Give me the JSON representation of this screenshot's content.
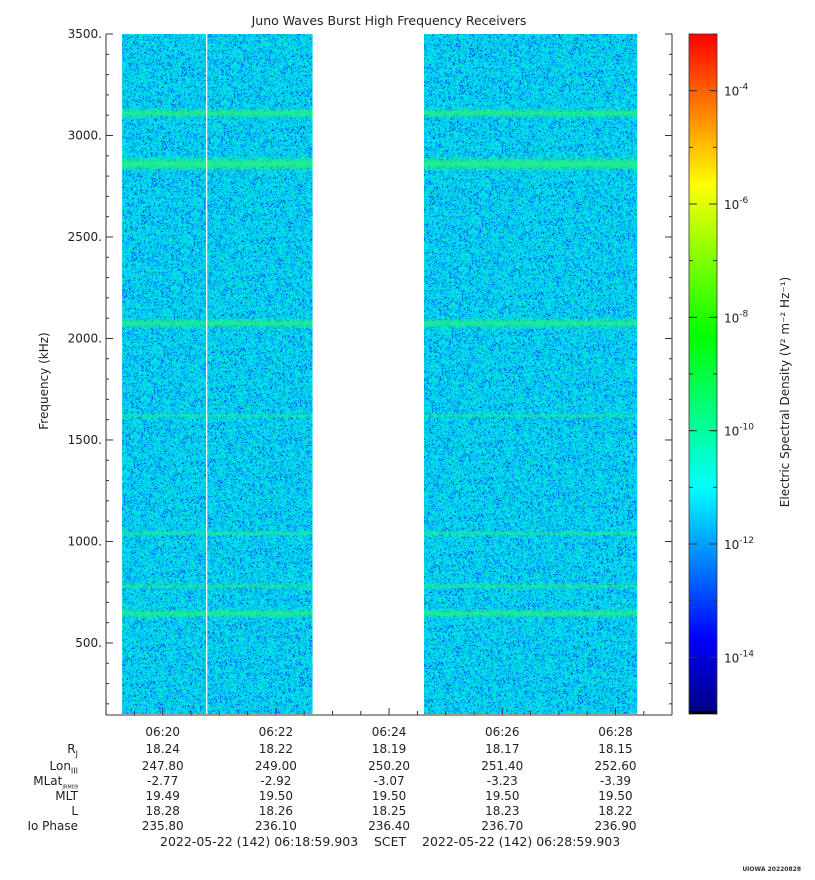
{
  "chart_data": {
    "type": "heatmap",
    "title": "Juno Waves Burst High Frequency Receivers",
    "ylabel": "Frequency (kHz)",
    "ylim": [
      150,
      3500
    ],
    "yticks": [
      {
        "value": 500,
        "label": "500."
      },
      {
        "value": 1000,
        "label": "1000."
      },
      {
        "value": 1500,
        "label": "1500."
      },
      {
        "value": 2000,
        "label": "2000."
      },
      {
        "value": 2500,
        "label": "2500."
      },
      {
        "value": 3000,
        "label": "3000."
      },
      {
        "value": 3500,
        "label": "3500."
      }
    ],
    "xlim": [
      "06:18:59.903",
      "06:28:59.903"
    ],
    "xticks": [
      "06:20",
      "06:22",
      "06:24",
      "06:26",
      "06:28"
    ],
    "data_segments": [
      {
        "start": "06:19:17",
        "end": "06:22:39"
      },
      {
        "start": "06:24:37",
        "end": "06:28:23"
      }
    ],
    "data_gaps": [
      {
        "start": "06:20:46",
        "end": "06:20:47"
      },
      {
        "start": "06:22:39",
        "end": "06:24:37"
      }
    ],
    "emission_bands_khz": [
      3110,
      2860,
      2075,
      1620,
      1040,
      780,
      645
    ],
    "colorbar": {
      "label": "Electric Spectral Density (V² m⁻² Hz⁻¹)",
      "scale": "log",
      "range": [
        1e-15,
        0.001
      ],
      "tick_exponents": [
        -14,
        -12,
        -10,
        -8,
        -6,
        -4
      ],
      "colors": [
        "#000080",
        "#0000ff",
        "#0080ff",
        "#00ffff",
        "#00ff80",
        "#00ff00",
        "#80ff00",
        "#ffff00",
        "#ff8000",
        "#ff0000"
      ]
    },
    "background_level_exponent": -12
  },
  "ephemeris": {
    "labels": [
      "R",
      "Lon",
      "MLat",
      "MLT",
      "L",
      "Io Phase"
    ],
    "subscripts": [
      "J",
      "III",
      "JRM09",
      "",
      "",
      ""
    ],
    "columns": [
      {
        "time": "06:20",
        "values": [
          "18.24",
          "247.80",
          "-2.77",
          "19.49",
          "18.28",
          "235.80"
        ]
      },
      {
        "time": "06:22",
        "values": [
          "18.22",
          "249.00",
          "-2.92",
          "19.50",
          "18.26",
          "236.10"
        ]
      },
      {
        "time": "06:24",
        "values": [
          "18.19",
          "250.20",
          "-3.07",
          "19.50",
          "18.25",
          "236.40"
        ]
      },
      {
        "time": "06:26",
        "values": [
          "18.17",
          "251.40",
          "-3.23",
          "19.50",
          "18.23",
          "236.70"
        ]
      },
      {
        "time": "06:28",
        "values": [
          "18.15",
          "252.60",
          "-3.39",
          "19.50",
          "18.22",
          "236.90"
        ]
      }
    ]
  },
  "footer": {
    "start": "2022-05-22 (142) 06:18:59.903",
    "frame": "SCET",
    "end": "2022-05-22 (142) 06:28:59.903"
  },
  "credit": "UIOWA 20220828"
}
